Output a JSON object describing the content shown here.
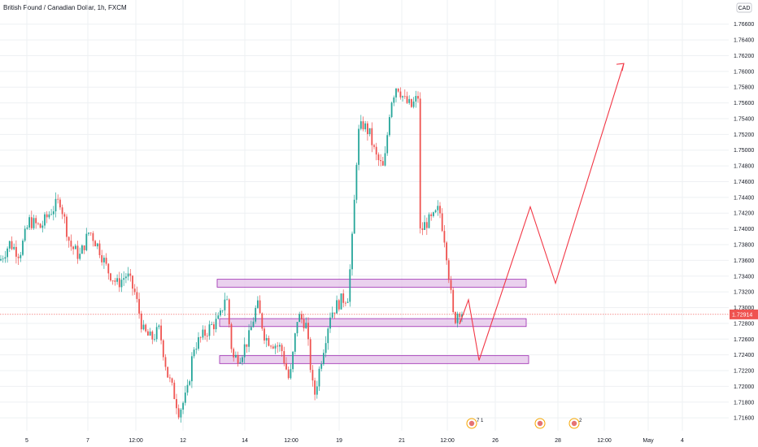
{
  "header": {
    "title": "British Pound / Canadian Dollar, 1h, FXCM"
  },
  "currency_label": "CAD",
  "current_price_label": "1.72914",
  "colors": {
    "up": "#26a69a",
    "down": "#ef5350",
    "zone_fill": "#e1bee7",
    "zone_stroke": "#9c27b0",
    "projection": "#f23645",
    "grid": "#eef0f3",
    "current_line": "#ef5350"
  },
  "events": [
    {
      "icon": "flag-icon",
      "label": "7 1"
    },
    {
      "icon": "flag-icon",
      "label": ""
    },
    {
      "icon": "flag-icon",
      "label": "2"
    }
  ],
  "chart_data": {
    "type": "candlestick",
    "title": "British Pound / Canadian Dollar, 1h, FXCM",
    "ylim": [
      1.7154,
      1.767
    ],
    "y_ticks": [
      "1.76600",
      "1.76400",
      "1.76200",
      "1.76000",
      "1.75800",
      "1.75600",
      "1.75400",
      "1.75200",
      "1.75000",
      "1.74800",
      "1.74600",
      "1.74400",
      "1.74200",
      "1.74000",
      "1.73800",
      "1.73600",
      "1.73400",
      "1.73200",
      "1.73000",
      "1.72800",
      "1.72600",
      "1.72400",
      "1.72200",
      "1.72000",
      "1.71800",
      "1.71600"
    ],
    "x_ticks": [
      "5",
      "7",
      "12:00",
      "12",
      "14",
      "12:00",
      "19",
      "21",
      "12:00",
      "26",
      "28",
      "12:00",
      "May",
      "4"
    ],
    "current_price": 1.72914,
    "grid": true,
    "zones": [
      {
        "name": "resistance-zone",
        "from": 1.7326,
        "to": 1.7336
      },
      {
        "name": "middle-zone",
        "from": 1.7276,
        "to": 1.7286
      },
      {
        "name": "support-zone",
        "from": 1.7229,
        "to": 1.7239
      }
    ],
    "projection": [
      1.7279,
      1.731,
      1.7233,
      1.7428,
      1.7331,
      1.761
    ],
    "price_path": [
      [
        0,
        1.736
      ],
      [
        12,
        1.7382
      ],
      [
        24,
        1.7368
      ],
      [
        36,
        1.741
      ],
      [
        50,
        1.7402
      ],
      [
        62,
        1.7422
      ],
      [
        74,
        1.7436
      ],
      [
        86,
        1.738
      ],
      [
        98,
        1.7365
      ],
      [
        110,
        1.7398
      ],
      [
        122,
        1.7375
      ],
      [
        132,
        1.7348
      ],
      [
        144,
        1.733
      ],
      [
        156,
        1.7342
      ],
      [
        166,
        1.7318
      ],
      [
        176,
        1.727
      ],
      [
        186,
        1.726
      ],
      [
        196,
        1.7272
      ],
      [
        206,
        1.7215
      ],
      [
        214,
        1.719
      ],
      [
        220,
        1.7168
      ],
      [
        230,
        1.719
      ],
      [
        238,
        1.725
      ],
      [
        248,
        1.7262
      ],
      [
        258,
        1.7275
      ],
      [
        270,
        1.7285
      ],
      [
        278,
        1.732
      ],
      [
        286,
        1.7235
      ],
      [
        296,
        1.724
      ],
      [
        306,
        1.7262
      ],
      [
        316,
        1.7305
      ],
      [
        326,
        1.7262
      ],
      [
        336,
        1.7255
      ],
      [
        346,
        1.7248
      ],
      [
        356,
        1.7205
      ],
      [
        366,
        1.729
      ],
      [
        376,
        1.728
      ],
      [
        386,
        1.7185
      ],
      [
        396,
        1.724
      ],
      [
        406,
        1.7292
      ],
      [
        418,
        1.7308
      ],
      [
        428,
        1.7315
      ],
      [
        434,
        1.74
      ],
      [
        440,
        1.752
      ],
      [
        446,
        1.7533
      ],
      [
        454,
        1.7522
      ],
      [
        462,
        1.7492
      ],
      [
        472,
        1.7475
      ],
      [
        480,
        1.756
      ],
      [
        488,
        1.7584
      ],
      [
        498,
        1.7562
      ],
      [
        506,
        1.7555
      ],
      [
        514,
        1.7568
      ],
      [
        516,
        1.7395
      ],
      [
        524,
        1.7408
      ],
      [
        532,
        1.7412
      ],
      [
        540,
        1.7426
      ],
      [
        548,
        1.738
      ],
      [
        554,
        1.732
      ],
      [
        558,
        1.7282
      ],
      [
        564,
        1.7298
      ],
      [
        570,
        1.7292
      ]
    ],
    "x_domain": [
      0,
      932
    ]
  }
}
